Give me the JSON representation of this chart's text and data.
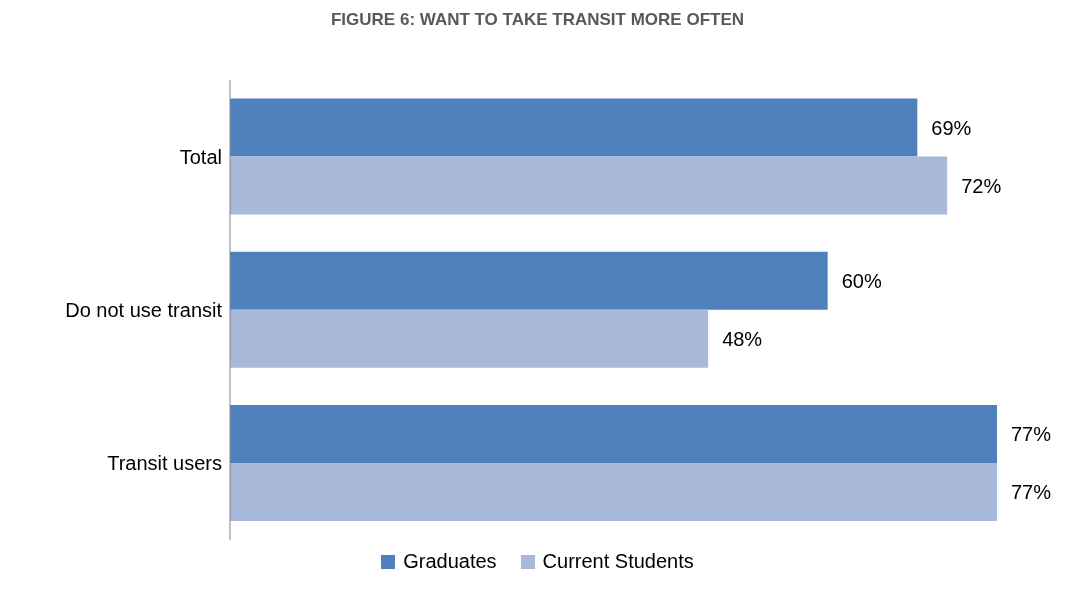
{
  "chart_data": {
    "type": "bar",
    "orientation": "horizontal",
    "title": "FIGURE 6: WANT TO TAKE TRANSIT MORE OFTEN",
    "categories": [
      "Total",
      "Do not use transit",
      "Transit users"
    ],
    "series": [
      {
        "name": "Graduates",
        "color": "#4f81bd",
        "values": [
          69,
          60,
          77
        ],
        "value_labels": [
          "69%",
          "60%",
          "77%"
        ]
      },
      {
        "name": "Current Students",
        "color": "#a9b9d9",
        "values": [
          72,
          48,
          77
        ],
        "value_labels": [
          "72%",
          "48%",
          "77%"
        ]
      }
    ],
    "legend": "bottom"
  }
}
